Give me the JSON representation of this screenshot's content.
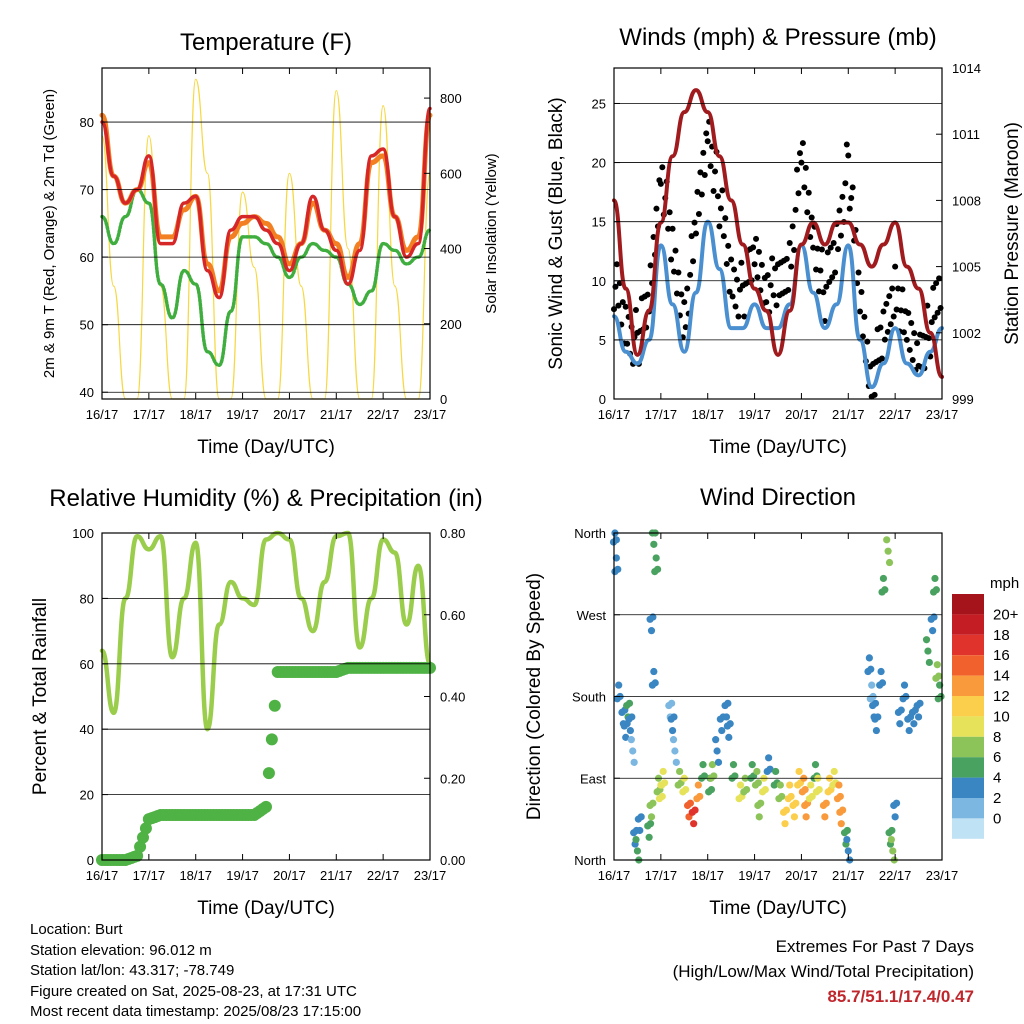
{
  "x_tick_labels": [
    "16/17",
    "17/17",
    "18/17",
    "19/17",
    "20/17",
    "21/17",
    "22/17",
    "23/17"
  ],
  "time_label": "Time (Day/UTC)",
  "colors": {
    "temp_2m": "#d62728",
    "temp_9m": "#f28023",
    "dewpoint": "#3fae3f",
    "solar": "#f6d843",
    "gust": "#000000",
    "wind": "#4a8fcf",
    "pressure": "#a01b1e",
    "rh": "#9acd4c",
    "precip": "#4fb244"
  },
  "chart_data": [
    {
      "id": "temperature",
      "type": "line",
      "title": "Temperature (F)",
      "xlabel": "Time (Day/UTC)",
      "ylabel": "2m & 9m T (Red, Orange) & 2m Td (Green)",
      "y2label": "Solar Insolation (Yellow)",
      "ylim": [
        39,
        88
      ],
      "y2lim": [
        0,
        880
      ],
      "yticks": [
        "40",
        "50",
        "60",
        "70",
        "80"
      ],
      "y2ticks": [
        "0",
        "200",
        "400",
        "600",
        "800"
      ],
      "x": [
        0,
        0.25,
        0.5,
        0.75,
        1,
        1.25,
        1.5,
        1.75,
        2,
        2.25,
        2.5,
        2.75,
        3,
        3.25,
        3.5,
        3.75,
        4,
        4.25,
        4.5,
        4.75,
        5,
        5.25,
        5.5,
        5.75,
        6,
        6.25,
        6.5,
        6.75,
        7
      ],
      "series": [
        {
          "name": "2m T",
          "axis": "left",
          "values": [
            80,
            72,
            68,
            70,
            75,
            62,
            62,
            68,
            69,
            58,
            54,
            64,
            66,
            66,
            64,
            62,
            58,
            62,
            69,
            64,
            61,
            56,
            61,
            75,
            76,
            66,
            60,
            62,
            82
          ]
        },
        {
          "name": "9m T",
          "axis": "left",
          "values": [
            81,
            72,
            68,
            70,
            74,
            63,
            63,
            67,
            69,
            59,
            55,
            63,
            65,
            66,
            65,
            63,
            59,
            62,
            68,
            64,
            62,
            57,
            62,
            74,
            75,
            66,
            61,
            63,
            81
          ]
        },
        {
          "name": "2m Td",
          "axis": "left",
          "values": [
            66,
            62,
            66,
            70,
            68,
            56,
            51,
            58,
            56,
            46,
            44,
            52,
            63,
            63,
            62,
            60,
            57,
            60,
            62,
            61,
            60,
            56,
            53,
            55,
            62,
            61,
            59,
            60,
            64
          ]
        },
        {
          "name": "Solar",
          "axis": "right",
          "values": [
            700,
            300,
            0,
            0,
            700,
            300,
            0,
            0,
            850,
            600,
            0,
            0,
            550,
            350,
            0,
            0,
            600,
            300,
            0,
            0,
            820,
            400,
            0,
            0,
            780,
            300,
            0,
            0,
            600
          ]
        }
      ]
    },
    {
      "id": "winds",
      "type": "line",
      "title": "Winds (mph) & Pressure (mb)",
      "xlabel": "Time (Day/UTC)",
      "ylabel": "Sonic Wind & Gust (Blue, Black)",
      "y2label": "Station Pressure (Maroon)",
      "ylim": [
        0,
        28
      ],
      "y2lim": [
        999,
        1014
      ],
      "yticks": [
        "0",
        "5",
        "10",
        "15",
        "20",
        "25"
      ],
      "y2ticks": [
        "999",
        "1002",
        "1005",
        "1008",
        "1011",
        "1014"
      ],
      "x": [
        0,
        0.25,
        0.5,
        0.75,
        1,
        1.25,
        1.5,
        1.75,
        2,
        2.25,
        2.5,
        2.75,
        3,
        3.25,
        3.5,
        3.75,
        4,
        4.25,
        4.5,
        4.75,
        5,
        5.25,
        5.5,
        5.75,
        6,
        6.25,
        6.5,
        6.75,
        7
      ],
      "series": [
        {
          "name": "Gust",
          "axis": "left",
          "values": [
            10,
            6,
            5,
            8,
            20,
            12,
            7,
            14,
            23,
            17,
            10,
            9,
            12,
            10,
            9,
            12,
            20,
            14,
            9,
            13,
            20,
            8,
            2,
            5,
            10,
            5,
            4,
            6,
            10
          ]
        },
        {
          "name": "Wind",
          "axis": "left",
          "values": [
            7,
            4,
            3,
            5,
            13,
            8,
            4,
            9,
            15,
            11,
            6,
            6,
            8,
            6,
            6,
            8,
            13,
            9,
            6,
            8,
            13,
            5,
            1,
            3,
            6,
            3,
            2,
            4,
            6
          ]
        },
        {
          "name": "Pressure",
          "axis": "right",
          "values": [
            1008,
            1004,
            1001,
            1003,
            1007,
            1010,
            1012,
            1013,
            1012,
            1010,
            1008,
            1006,
            1004,
            1003,
            1001,
            1003,
            1006,
            1007,
            1006,
            1007,
            1007,
            1006,
            1005,
            1006,
            1007,
            1005,
            1004,
            1002,
            1000
          ]
        }
      ]
    },
    {
      "id": "humidity",
      "type": "line",
      "title": "Relative Humidity (%) & Precipitation (in)",
      "xlabel": "Time (Day/UTC)",
      "ylabel": "Percent & Total Rainfall",
      "ylim": [
        0,
        100
      ],
      "y2lim": [
        0,
        0.8
      ],
      "yticks": [
        "0",
        "20",
        "40",
        "60",
        "80",
        "100"
      ],
      "y2ticks": [
        "0.00",
        "0.20",
        "0.40",
        "0.60",
        "0.80"
      ],
      "x": [
        0,
        0.25,
        0.5,
        0.75,
        1,
        1.25,
        1.5,
        1.75,
        2,
        2.25,
        2.5,
        2.75,
        3,
        3.25,
        3.5,
        3.75,
        4,
        4.25,
        4.5,
        4.75,
        5,
        5.25,
        5.5,
        5.75,
        6,
        6.25,
        6.5,
        6.75,
        7
      ],
      "series": [
        {
          "name": "RH",
          "axis": "left",
          "values": [
            64,
            45,
            80,
            99,
            95,
            99,
            62,
            80,
            97,
            40,
            72,
            85,
            80,
            78,
            98,
            100,
            98,
            80,
            70,
            85,
            99,
            100,
            65,
            80,
            98,
            94,
            72,
            90,
            60
          ]
        },
        {
          "name": "Precip",
          "axis": "right",
          "values": [
            0,
            0,
            0,
            0.01,
            0.1,
            0.11,
            0.11,
            0.11,
            0.11,
            0.11,
            0.11,
            0.11,
            0.11,
            0.11,
            0.13,
            0.46,
            0.46,
            0.46,
            0.46,
            0.46,
            0.46,
            0.47,
            0.47,
            0.47,
            0.47,
            0.47,
            0.47,
            0.47,
            0.47
          ]
        }
      ]
    },
    {
      "id": "direction",
      "type": "scatter",
      "title": "Wind Direction",
      "xlabel": "Time (Day/UTC)",
      "ylabel": "Direction (Colored By Speed)",
      "ylim": [
        0,
        360
      ],
      "yticks": [
        "North",
        "East",
        "South",
        "West",
        "North"
      ],
      "legend_title": "mph",
      "legend_labels": [
        "20+",
        "18",
        "16",
        "14",
        "12",
        "10",
        "8",
        "6",
        "4",
        "2",
        "0"
      ],
      "legend_colors": [
        "#a6141b",
        "#c41e24",
        "#e0332c",
        "#f1612e",
        "#f99a3c",
        "#fbcf4b",
        "#e6e35b",
        "#8dc45a",
        "#4aa260",
        "#3a86c2",
        "#7bb7e0",
        "#bfe2f5"
      ],
      "points": [
        [
          0.02,
          355,
          3
        ],
        [
          0.05,
          330,
          4
        ],
        [
          0.1,
          180,
          3
        ],
        [
          0.2,
          160,
          3
        ],
        [
          0.25,
          140,
          4
        ],
        [
          0.3,
          170,
          5
        ],
        [
          0.35,
          150,
          3
        ],
        [
          0.4,
          120,
          2
        ],
        [
          0.45,
          20,
          4
        ],
        [
          0.5,
          10,
          5
        ],
        [
          0.55,
          40,
          3
        ],
        [
          0.75,
          30,
          6
        ],
        [
          0.8,
          60,
          8
        ],
        [
          0.85,
          350,
          6
        ],
        [
          0.9,
          330,
          5
        ],
        [
          0.8,
          260,
          4
        ],
        [
          0.85,
          200,
          3
        ],
        [
          0.95,
          80,
          7
        ],
        [
          1.0,
          70,
          9
        ],
        [
          1.05,
          90,
          10
        ],
        [
          1.2,
          170,
          2
        ],
        [
          1.25,
          150,
          3
        ],
        [
          1.3,
          120,
          2
        ],
        [
          1.4,
          90,
          8
        ],
        [
          1.5,
          80,
          10
        ],
        [
          1.6,
          60,
          16
        ],
        [
          1.7,
          50,
          18
        ],
        [
          1.8,
          70,
          14
        ],
        [
          1.9,
          100,
          5
        ],
        [
          2.05,
          80,
          6
        ],
        [
          2.1,
          100,
          7
        ],
        [
          2.2,
          120,
          4
        ],
        [
          2.3,
          150,
          3
        ],
        [
          2.4,
          170,
          3
        ],
        [
          2.45,
          140,
          4
        ],
        [
          2.55,
          100,
          5
        ],
        [
          2.7,
          70,
          9
        ],
        [
          2.8,
          80,
          8
        ],
        [
          2.95,
          100,
          6
        ],
        [
          3.05,
          90,
          7
        ],
        [
          3.1,
          60,
          8
        ],
        [
          3.2,
          80,
          9
        ],
        [
          3.3,
          110,
          4
        ],
        [
          3.45,
          90,
          6
        ],
        [
          3.55,
          70,
          8
        ],
        [
          3.65,
          50,
          11
        ],
        [
          3.75,
          70,
          12
        ],
        [
          3.85,
          60,
          12
        ],
        [
          3.95,
          90,
          11
        ],
        [
          4.05,
          80,
          13
        ],
        [
          4.1,
          60,
          14
        ],
        [
          4.2,
          70,
          10
        ],
        [
          4.3,
          100,
          5
        ],
        [
          4.35,
          80,
          9
        ],
        [
          4.5,
          60,
          13
        ],
        [
          4.6,
          80,
          12
        ],
        [
          4.7,
          90,
          10
        ],
        [
          4.8,
          70,
          14
        ],
        [
          4.85,
          50,
          13
        ],
        [
          4.95,
          20,
          5
        ],
        [
          5.0,
          10,
          4
        ],
        [
          5.45,
          220,
          3
        ],
        [
          5.5,
          180,
          2
        ],
        [
          5.55,
          170,
          3
        ],
        [
          5.6,
          150,
          4
        ],
        [
          5.7,
          200,
          4
        ],
        [
          5.75,
          300,
          5
        ],
        [
          5.85,
          340,
          7
        ],
        [
          5.9,
          20,
          6
        ],
        [
          5.95,
          10,
          7
        ],
        [
          6.0,
          60,
          3
        ],
        [
          6.1,
          160,
          4
        ],
        [
          6.2,
          180,
          3
        ],
        [
          6.3,
          150,
          4
        ],
        [
          6.4,
          160,
          4
        ],
        [
          6.5,
          170,
          3
        ],
        [
          6.7,
          230,
          5
        ],
        [
          6.8,
          260,
          4
        ],
        [
          6.85,
          300,
          6
        ],
        [
          6.9,
          210,
          8
        ],
        [
          6.95,
          180,
          6
        ]
      ]
    }
  ],
  "info": {
    "location": "Location: Burt",
    "elevation": "Station elevation: 96.012 m",
    "latlon": "Station lat/lon: 43.317; -78.749",
    "created": "Figure created on Sat, 2025-08-23, at 17:31 UTC",
    "recent": "Most recent data timestamp: 2025/08/23 17:15:00"
  },
  "extremes": {
    "heading": "Extremes For Past 7 Days",
    "subheading": "(High/Low/Max Wind/Total Precipitation)",
    "values": "85.7/51.1/17.4/0.47"
  }
}
